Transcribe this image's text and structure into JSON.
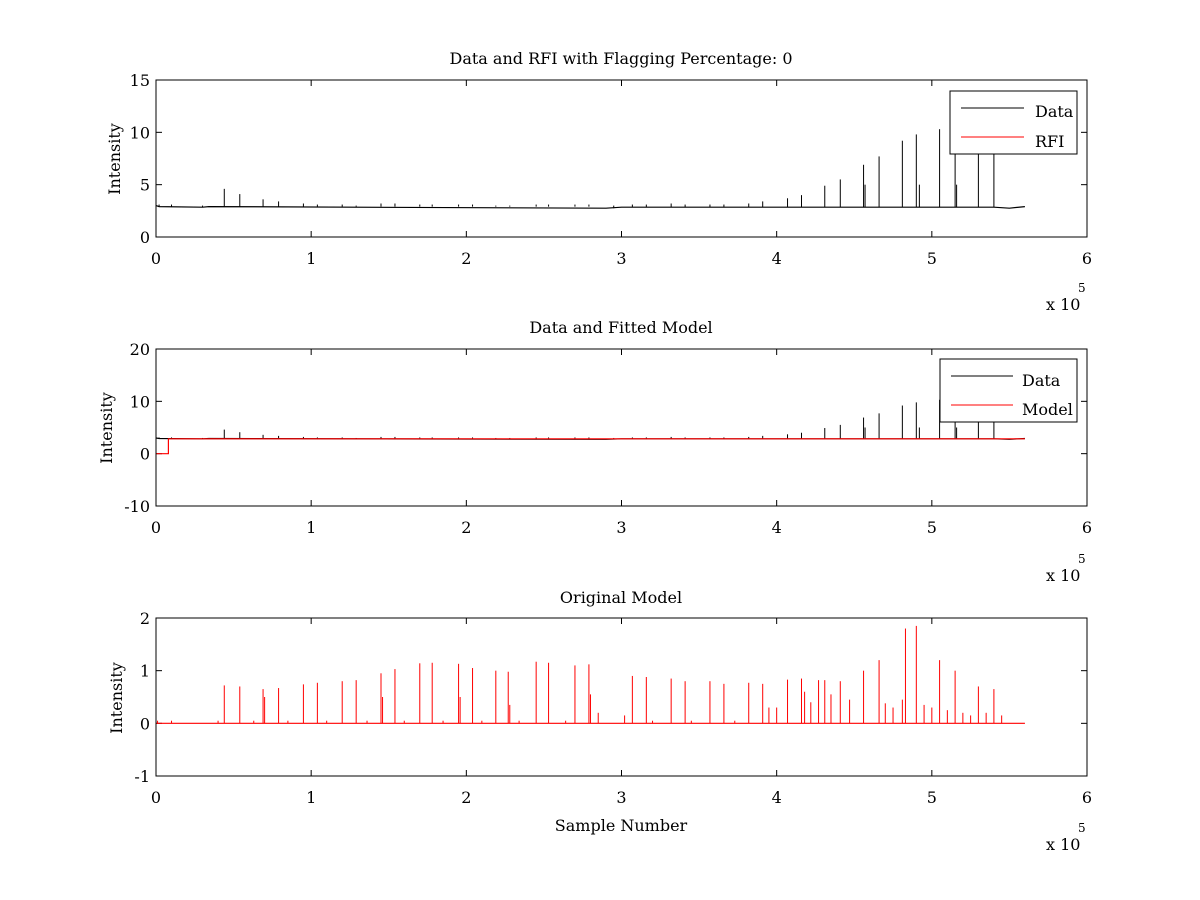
{
  "figure": {
    "background": "#ffffff",
    "colors": {
      "data": "#000000",
      "rfi": "#ff0000",
      "model": "#ff0000",
      "axis": "#000000"
    }
  },
  "chart_data": [
    {
      "type": "line",
      "title": "Data and RFI with Flagging Percentage: 0",
      "xlabel": "",
      "ylabel": "Intensity",
      "xlim": [
        0,
        6
      ],
      "ylim": [
        0,
        15
      ],
      "xticks": [
        "0",
        "1",
        "2",
        "3",
        "4",
        "5",
        "6"
      ],
      "yticks": [
        "0",
        "5",
        "10",
        "15"
      ],
      "x_multiplier": {
        "base": "x 10",
        "exponent": "5"
      },
      "legend": {
        "position": "top-right",
        "entries": [
          "Data",
          "RFI"
        ]
      },
      "grid": false,
      "baseline": [
        [
          0,
          3.0
        ],
        [
          0.02,
          2.9
        ],
        [
          0.3,
          2.85
        ],
        [
          0.34,
          2.9
        ],
        [
          2.9,
          2.75
        ],
        [
          3.0,
          2.85
        ],
        [
          5.4,
          2.85
        ],
        [
          5.5,
          2.75
        ],
        [
          5.6,
          2.9
        ]
      ],
      "series": [
        {
          "name": "Data",
          "color": "#000000",
          "spikes": [
            [
              0.02,
              3.1
            ],
            [
              0.1,
              3.1
            ],
            [
              0.3,
              3.0
            ],
            [
              0.44,
              4.6
            ],
            [
              0.54,
              4.1
            ],
            [
              0.69,
              3.6
            ],
            [
              0.79,
              3.4
            ],
            [
              0.95,
              3.2
            ],
            [
              1.04,
              3.1
            ],
            [
              1.2,
              3.1
            ],
            [
              1.29,
              3.0
            ],
            [
              1.45,
              3.2
            ],
            [
              1.54,
              3.2
            ],
            [
              1.7,
              3.1
            ],
            [
              1.78,
              3.1
            ],
            [
              1.95,
              3.1
            ],
            [
              2.04,
              3.1
            ],
            [
              2.19,
              3.0
            ],
            [
              2.28,
              3.0
            ],
            [
              2.45,
              3.1
            ],
            [
              2.53,
              3.1
            ],
            [
              2.7,
              3.1
            ],
            [
              2.79,
              3.1
            ],
            [
              2.95,
              3.0
            ],
            [
              3.07,
              3.1
            ],
            [
              3.16,
              3.1
            ],
            [
              3.32,
              3.2
            ],
            [
              3.41,
              3.1
            ],
            [
              3.57,
              3.1
            ],
            [
              3.66,
              3.1
            ],
            [
              3.82,
              3.2
            ],
            [
              3.91,
              3.4
            ],
            [
              4.07,
              3.7
            ],
            [
              4.16,
              4.0
            ],
            [
              4.31,
              4.9
            ],
            [
              4.41,
              5.5
            ],
            [
              4.56,
              6.9
            ],
            [
              4.66,
              7.7
            ],
            [
              4.81,
              9.2
            ],
            [
              4.9,
              9.8
            ],
            [
              5.05,
              10.3
            ],
            [
              5.15,
              11.5
            ],
            [
              5.3,
              12.5
            ],
            [
              5.4,
              13.0
            ]
          ],
          "drops": [
            [
              4.56,
              5.0
            ],
            [
              4.91,
              5.0
            ],
            [
              5.15,
              5.0
            ]
          ]
        },
        {
          "name": "RFI",
          "color": "#ff0000",
          "values": "near-zero (flagging percentage 0)"
        }
      ]
    },
    {
      "type": "line",
      "title": "Data and Fitted Model",
      "xlabel": "",
      "ylabel": "Intensity",
      "xlim": [
        0,
        6
      ],
      "ylim": [
        -10,
        20
      ],
      "xticks": [
        "0",
        "1",
        "2",
        "3",
        "4",
        "5",
        "6"
      ],
      "yticks": [
        "-10",
        "0",
        "10",
        "20"
      ],
      "x_multiplier": {
        "base": "x 10",
        "exponent": "5"
      },
      "legend": {
        "position": "top-right",
        "entries": [
          "Data",
          "Model"
        ]
      },
      "grid": false,
      "model_level": 2.85,
      "model_start": [
        [
          0,
          0
        ],
        [
          0.08,
          0
        ],
        [
          0.08,
          2.85
        ]
      ],
      "series": [
        {
          "name": "Data",
          "color": "#000000",
          "same_as_panel": 1
        },
        {
          "name": "Model",
          "color": "#ff0000",
          "values": [
            [
              0,
              0
            ],
            [
              0.08,
              0
            ],
            [
              0.08,
              2.85
            ],
            [
              5.6,
              2.85
            ]
          ]
        }
      ]
    },
    {
      "type": "line",
      "title": "Original Model",
      "xlabel": "Sample Number",
      "ylabel": "Intensity",
      "xlim": [
        0,
        6
      ],
      "ylim": [
        -1,
        2
      ],
      "xticks": [
        "0",
        "1",
        "2",
        "3",
        "4",
        "5",
        "6"
      ],
      "yticks": [
        "-1",
        "0",
        "1",
        "2"
      ],
      "x_multiplier": {
        "base": "x 10",
        "exponent": "5"
      },
      "legend": null,
      "grid": false,
      "series": [
        {
          "name": "",
          "color": "#ff0000",
          "baseline": 0,
          "range": [
            0,
            5.6
          ],
          "spikes": [
            [
              0.01,
              0.05
            ],
            [
              0.1,
              0.05
            ],
            [
              0.4,
              0.05
            ],
            [
              0.44,
              0.72
            ],
            [
              0.54,
              0.7
            ],
            [
              0.63,
              0.05
            ],
            [
              0.69,
              0.65
            ],
            [
              0.7,
              0.5
            ],
            [
              0.79,
              0.67
            ],
            [
              0.85,
              0.05
            ],
            [
              0.95,
              0.74
            ],
            [
              1.04,
              0.77
            ],
            [
              1.1,
              0.05
            ],
            [
              1.2,
              0.8
            ],
            [
              1.29,
              0.82
            ],
            [
              1.36,
              0.05
            ],
            [
              1.45,
              0.95
            ],
            [
              1.46,
              0.5
            ],
            [
              1.54,
              1.03
            ],
            [
              1.6,
              0.05
            ],
            [
              1.7,
              1.14
            ],
            [
              1.78,
              1.15
            ],
            [
              1.85,
              0.05
            ],
            [
              1.95,
              1.13
            ],
            [
              1.96,
              0.5
            ],
            [
              2.04,
              1.05
            ],
            [
              2.1,
              0.05
            ],
            [
              2.19,
              1.0
            ],
            [
              2.27,
              0.98
            ],
            [
              2.28,
              0.35
            ],
            [
              2.34,
              0.05
            ],
            [
              2.45,
              1.17
            ],
            [
              2.53,
              1.15
            ],
            [
              2.64,
              0.05
            ],
            [
              2.7,
              1.1
            ],
            [
              2.79,
              1.12
            ],
            [
              2.8,
              0.55
            ],
            [
              2.85,
              0.2
            ],
            [
              3.02,
              0.15
            ],
            [
              3.07,
              0.9
            ],
            [
              3.16,
              0.88
            ],
            [
              3.2,
              0.05
            ],
            [
              3.32,
              0.85
            ],
            [
              3.41,
              0.8
            ],
            [
              3.45,
              0.05
            ],
            [
              3.57,
              0.8
            ],
            [
              3.66,
              0.75
            ],
            [
              3.73,
              0.05
            ],
            [
              3.82,
              0.77
            ],
            [
              3.91,
              0.75
            ],
            [
              3.95,
              0.3
            ],
            [
              4.0,
              0.3
            ],
            [
              4.07,
              0.83
            ],
            [
              4.16,
              0.85
            ],
            [
              4.18,
              0.6
            ],
            [
              4.22,
              0.4
            ],
            [
              4.27,
              0.82
            ],
            [
              4.31,
              0.82
            ],
            [
              4.35,
              0.55
            ],
            [
              4.41,
              0.8
            ],
            [
              4.47,
              0.45
            ],
            [
              4.56,
              1.0
            ],
            [
              4.66,
              1.2
            ],
            [
              4.7,
              0.38
            ],
            [
              4.75,
              0.3
            ],
            [
              4.81,
              0.45
            ],
            [
              4.83,
              1.8
            ],
            [
              4.9,
              1.85
            ],
            [
              4.95,
              0.35
            ],
            [
              5.0,
              0.3
            ],
            [
              5.05,
              1.2
            ],
            [
              5.1,
              0.25
            ],
            [
              5.15,
              1.0
            ],
            [
              5.2,
              0.2
            ],
            [
              5.25,
              0.15
            ],
            [
              5.3,
              0.7
            ],
            [
              5.35,
              0.2
            ],
            [
              5.4,
              0.65
            ],
            [
              5.45,
              0.15
            ]
          ]
        }
      ]
    }
  ]
}
